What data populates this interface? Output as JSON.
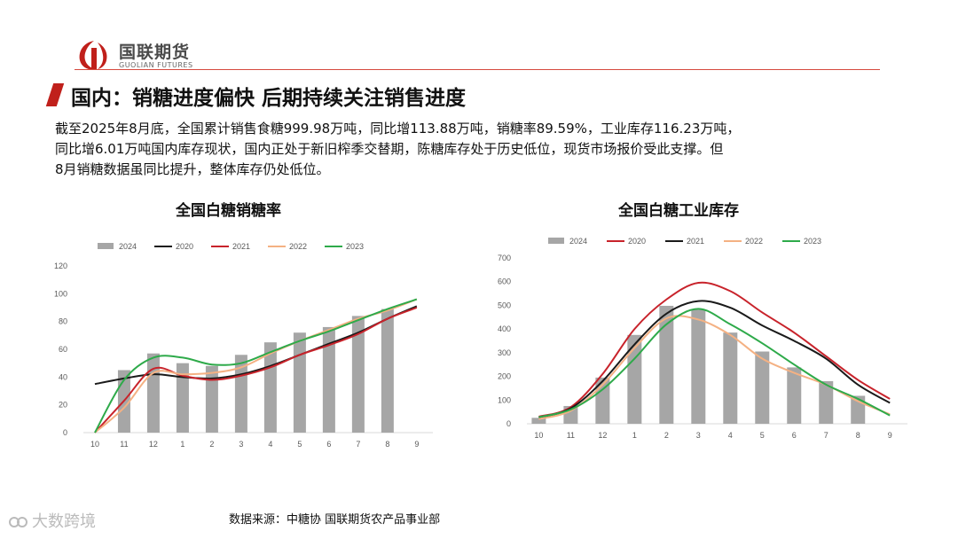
{
  "header": {
    "logo_cn": "国联期货",
    "logo_en": "GUOLIAN FUTURES",
    "title": "国内：销糖进度偏快 后期持续关注销售进度"
  },
  "colors": {
    "brand_red": "#c0201b",
    "bar_gray": "#a6a6a6"
  },
  "description": [
    "截至2025年8月底，全国累计销售食糖999.98万吨，同比增113.88万吨，销糖率89.59%，工业库存116.23万吨，",
    "同比增6.01万吨国内库存现状，国内正处于新旧榨季交替期，陈糖库存处于历史低位，现货市场报价受此支撑。但",
    "8月销糖数据虽同比提升，整体库存仍处低位。"
  ],
  "footnote": "数据来源：中糖协 国联期货农产品事业部",
  "watermark": "大数跨境",
  "chart_data": [
    {
      "type": "bar",
      "title": "全国白糖销糖率",
      "categories": [
        "10",
        "11",
        "12",
        "1",
        "2",
        "3",
        "4",
        "5",
        "6",
        "7",
        "8",
        "9"
      ],
      "ylim": [
        0,
        120
      ],
      "yticks": [
        0,
        20,
        40,
        60,
        80,
        100,
        120
      ],
      "grid": false,
      "legend_position": "top",
      "bar_series": {
        "name": "2024",
        "color": "#a6a6a6",
        "values": [
          null,
          45,
          57,
          50,
          48,
          56,
          65,
          72,
          76,
          84,
          89,
          null
        ]
      },
      "line_series": [
        {
          "name": "2020",
          "color": "#1a1a1a",
          "values": [
            35,
            39,
            42,
            40,
            39,
            42,
            48,
            56,
            64,
            72,
            82,
            91
          ]
        },
        {
          "name": "2021",
          "color": "#c8232b",
          "values": [
            0,
            23,
            46,
            41,
            38,
            41,
            47,
            56,
            63,
            71,
            82,
            90
          ]
        },
        {
          "name": "2022",
          "color": "#f4b183",
          "values": [
            0,
            18,
            43,
            42,
            43,
            47,
            57,
            66,
            74,
            82,
            88,
            96
          ]
        },
        {
          "name": "2023",
          "color": "#2eaa4a",
          "values": [
            0,
            38,
            54,
            54,
            49,
            50,
            58,
            66,
            73,
            81,
            89,
            96
          ]
        }
      ]
    },
    {
      "type": "bar",
      "title": "全国白糖工业库存",
      "categories": [
        "10",
        "11",
        "12",
        "1",
        "2",
        "3",
        "4",
        "5",
        "6",
        "7",
        "8",
        "9"
      ],
      "ylim": [
        0,
        700
      ],
      "yticks": [
        0,
        100,
        200,
        300,
        400,
        500,
        600,
        700
      ],
      "grid": false,
      "legend_position": "top",
      "bar_series": {
        "name": "2024",
        "color": "#a6a6a6",
        "values": [
          25,
          75,
          195,
          375,
          498,
          482,
          385,
          305,
          238,
          180,
          118,
          null
        ]
      },
      "line_series": [
        {
          "name": "2020",
          "color": "#c8232b",
          "values": [
            30,
            70,
            210,
            400,
            525,
            595,
            560,
            470,
            385,
            285,
            185,
            105
          ]
        },
        {
          "name": "2021",
          "color": "#1a1a1a",
          "values": [
            25,
            65,
            180,
            335,
            465,
            518,
            490,
            415,
            350,
            275,
            165,
            88
          ]
        },
        {
          "name": "2022",
          "color": "#f4b183",
          "values": [
            20,
            55,
            165,
            320,
            445,
            440,
            375,
            275,
            215,
            165,
            95,
            40
          ]
        },
        {
          "name": "2023",
          "color": "#2eaa4a",
          "values": [
            28,
            60,
            145,
            275,
            420,
            485,
            420,
            340,
            250,
            165,
            105,
            35
          ]
        }
      ]
    }
  ]
}
